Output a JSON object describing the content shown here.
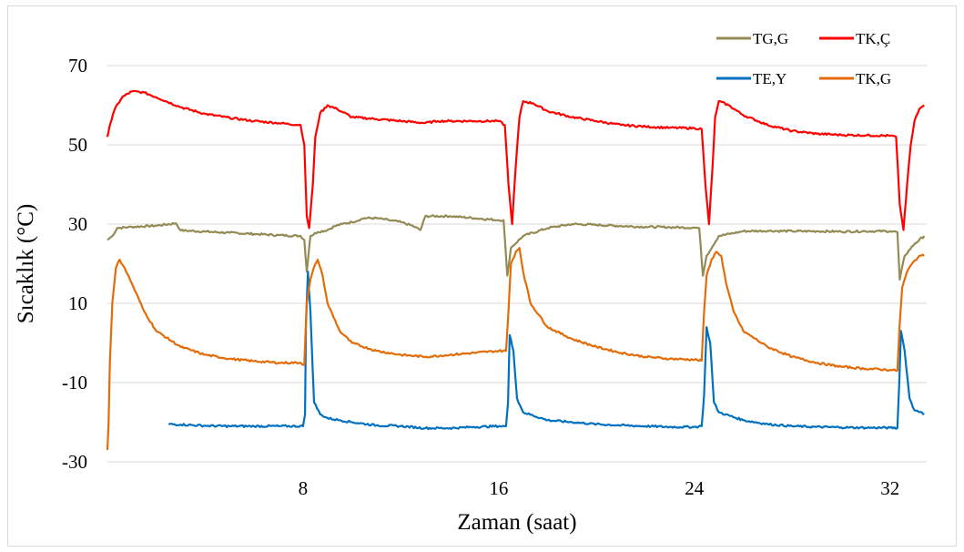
{
  "chart_data": {
    "type": "line",
    "xlabel": "Zaman (saat)",
    "ylabel": "Sıcaklık (°C)",
    "xlim": [
      0,
      33.5
    ],
    "ylim": [
      -30,
      70
    ],
    "xticks": [
      8,
      16,
      24,
      32
    ],
    "yticks": [
      -30,
      -10,
      10,
      30,
      50,
      70
    ],
    "grid": "horizontal",
    "legend": "top-right",
    "series": [
      {
        "name": "TG,G",
        "color": "#948a54",
        "points": [
          [
            0,
            26
          ],
          [
            0.2,
            27
          ],
          [
            0.4,
            29
          ],
          [
            1,
            29.3
          ],
          [
            2,
            29.6
          ],
          [
            2.8,
            30.2
          ],
          [
            3,
            28.4
          ],
          [
            4,
            28.1
          ],
          [
            5,
            27.8
          ],
          [
            6,
            27.5
          ],
          [
            7,
            27.2
          ],
          [
            7.9,
            27
          ],
          [
            8.05,
            26
          ],
          [
            8.15,
            18
          ],
          [
            8.3,
            27
          ],
          [
            8.6,
            28
          ],
          [
            9,
            28.5
          ],
          [
            9.3,
            29.5
          ],
          [
            9.6,
            30
          ],
          [
            10,
            30.5
          ],
          [
            10.5,
            31.5
          ],
          [
            11,
            31.5
          ],
          [
            11.5,
            31
          ],
          [
            12,
            30.5
          ],
          [
            12.5,
            29.5
          ],
          [
            12.8,
            28.5
          ],
          [
            13,
            32
          ],
          [
            14,
            32
          ],
          [
            15,
            31.5
          ],
          [
            16,
            31
          ],
          [
            16.2,
            31
          ],
          [
            16.35,
            17
          ],
          [
            16.5,
            24
          ],
          [
            17,
            27
          ],
          [
            18,
            29
          ],
          [
            19,
            30
          ],
          [
            20,
            29.8
          ],
          [
            21,
            29.5
          ],
          [
            22,
            29.3
          ],
          [
            23,
            29.2
          ],
          [
            24,
            29.1
          ],
          [
            24.2,
            29
          ],
          [
            24.35,
            17
          ],
          [
            24.5,
            22
          ],
          [
            25,
            27
          ],
          [
            26,
            28.2
          ],
          [
            27,
            28.3
          ],
          [
            28,
            28.2
          ],
          [
            29,
            28.2
          ],
          [
            30,
            28.1
          ],
          [
            31,
            28.2
          ],
          [
            32,
            28.2
          ],
          [
            32.3,
            28
          ],
          [
            32.4,
            16
          ],
          [
            32.6,
            22
          ],
          [
            33,
            25
          ],
          [
            33.4,
            27
          ]
        ]
      },
      {
        "name": "TK,Ç",
        "color": "#ff0000",
        "points": [
          [
            0,
            52
          ],
          [
            0.1,
            55
          ],
          [
            0.3,
            59
          ],
          [
            0.6,
            62
          ],
          [
            1,
            63.5
          ],
          [
            1.5,
            63.2
          ],
          [
            2,
            62
          ],
          [
            3,
            59.5
          ],
          [
            4,
            57.8
          ],
          [
            5,
            56.8
          ],
          [
            6,
            56
          ],
          [
            7,
            55.5
          ],
          [
            7.9,
            55
          ],
          [
            8.05,
            50
          ],
          [
            8.15,
            32
          ],
          [
            8.25,
            29
          ],
          [
            8.4,
            40
          ],
          [
            8.5,
            52
          ],
          [
            8.7,
            58
          ],
          [
            9,
            60
          ],
          [
            9.4,
            59
          ],
          [
            10,
            57
          ],
          [
            11,
            56.5
          ],
          [
            12,
            56
          ],
          [
            13,
            55.5
          ],
          [
            13.5,
            56
          ],
          [
            14,
            56
          ],
          [
            15,
            56
          ],
          [
            16,
            56
          ],
          [
            16.25,
            55
          ],
          [
            16.4,
            40
          ],
          [
            16.55,
            30
          ],
          [
            16.7,
            45
          ],
          [
            16.85,
            57
          ],
          [
            17,
            61
          ],
          [
            17.4,
            60.5
          ],
          [
            18,
            58.5
          ],
          [
            19,
            57
          ],
          [
            20,
            56
          ],
          [
            21,
            55
          ],
          [
            22,
            54.6
          ],
          [
            23,
            54.3
          ],
          [
            24,
            54.2
          ],
          [
            24.3,
            54
          ],
          [
            24.45,
            40
          ],
          [
            24.6,
            30
          ],
          [
            24.75,
            45
          ],
          [
            24.85,
            57
          ],
          [
            25,
            61
          ],
          [
            25.4,
            60
          ],
          [
            26,
            57.5
          ],
          [
            27,
            55
          ],
          [
            28,
            53.5
          ],
          [
            29,
            52.8
          ],
          [
            30,
            52.5
          ],
          [
            31,
            52.4
          ],
          [
            32,
            52.3
          ],
          [
            32.25,
            52
          ],
          [
            32.4,
            35
          ],
          [
            32.55,
            28.5
          ],
          [
            32.7,
            40
          ],
          [
            32.85,
            50
          ],
          [
            33,
            56
          ],
          [
            33.2,
            59
          ],
          [
            33.4,
            60
          ]
        ]
      },
      {
        "name": "TE,Y",
        "color": "#0070c0",
        "points": [
          [
            2.5,
            -20.5
          ],
          [
            3,
            -20.6
          ],
          [
            4,
            -20.9
          ],
          [
            5,
            -21
          ],
          [
            6,
            -21
          ],
          [
            7,
            -21
          ],
          [
            8,
            -21
          ],
          [
            8.08,
            -18
          ],
          [
            8.12,
            5
          ],
          [
            8.2,
            18
          ],
          [
            8.3,
            8
          ],
          [
            8.45,
            -15
          ],
          [
            8.7,
            -18
          ],
          [
            9,
            -19
          ],
          [
            9.5,
            -19.5
          ],
          [
            10,
            -20
          ],
          [
            11,
            -20.8
          ],
          [
            12,
            -21
          ],
          [
            13,
            -21.5
          ],
          [
            14,
            -21.5
          ],
          [
            15,
            -21.2
          ],
          [
            16,
            -21
          ],
          [
            16.3,
            -21
          ],
          [
            16.38,
            -15
          ],
          [
            16.45,
            2
          ],
          [
            16.6,
            -2
          ],
          [
            16.75,
            -14
          ],
          [
            17,
            -17.5
          ],
          [
            18,
            -19.5
          ],
          [
            19,
            -20
          ],
          [
            20,
            -20.5
          ],
          [
            21,
            -20.8
          ],
          [
            22,
            -21
          ],
          [
            23,
            -21.2
          ],
          [
            24,
            -21.2
          ],
          [
            24.3,
            -21
          ],
          [
            24.4,
            -13
          ],
          [
            24.5,
            4
          ],
          [
            24.65,
            0
          ],
          [
            24.8,
            -15
          ],
          [
            25,
            -17.5
          ],
          [
            26,
            -19.5
          ],
          [
            27,
            -20.5
          ],
          [
            28,
            -21
          ],
          [
            29,
            -21.2
          ],
          [
            30,
            -21.3
          ],
          [
            31,
            -21.4
          ],
          [
            32,
            -21.4
          ],
          [
            32.3,
            -21.5
          ],
          [
            32.38,
            -10
          ],
          [
            32.45,
            3
          ],
          [
            32.6,
            -2
          ],
          [
            32.8,
            -14
          ],
          [
            33,
            -17
          ],
          [
            33.3,
            -17.5
          ],
          [
            33.4,
            -18
          ]
        ]
      },
      {
        "name": "TK,G",
        "color": "#e36c09",
        "points": [
          [
            0,
            -27
          ],
          [
            0.05,
            -20
          ],
          [
            0.1,
            -5
          ],
          [
            0.2,
            10
          ],
          [
            0.35,
            19
          ],
          [
            0.5,
            21
          ],
          [
            0.7,
            19
          ],
          [
            1,
            15
          ],
          [
            1.5,
            8
          ],
          [
            2,
            3
          ],
          [
            3,
            -1
          ],
          [
            4,
            -3
          ],
          [
            5,
            -4
          ],
          [
            6,
            -4.6
          ],
          [
            7,
            -5
          ],
          [
            7.9,
            -5
          ],
          [
            8.05,
            -5.5
          ],
          [
            8.15,
            10
          ],
          [
            8.3,
            16
          ],
          [
            8.5,
            20
          ],
          [
            8.6,
            21
          ],
          [
            8.8,
            17
          ],
          [
            9,
            10
          ],
          [
            9.5,
            3
          ],
          [
            10,
            0
          ],
          [
            11,
            -2
          ],
          [
            12,
            -3
          ],
          [
            13,
            -3.5
          ],
          [
            14,
            -3
          ],
          [
            15,
            -2.5
          ],
          [
            16,
            -2
          ],
          [
            16.3,
            -2
          ],
          [
            16.4,
            8
          ],
          [
            16.5,
            20
          ],
          [
            16.7,
            23
          ],
          [
            16.85,
            24
          ],
          [
            17,
            18
          ],
          [
            17.3,
            10
          ],
          [
            18,
            4
          ],
          [
            19,
            1
          ],
          [
            20,
            -1
          ],
          [
            21,
            -2.5
          ],
          [
            22,
            -3.5
          ],
          [
            23,
            -4
          ],
          [
            24,
            -4.2
          ],
          [
            24.3,
            -4.5
          ],
          [
            24.4,
            8
          ],
          [
            24.5,
            17
          ],
          [
            24.7,
            21
          ],
          [
            24.9,
            23
          ],
          [
            25.1,
            22
          ],
          [
            25.3,
            15
          ],
          [
            25.6,
            8
          ],
          [
            26,
            3
          ],
          [
            27,
            -1
          ],
          [
            28,
            -3.5
          ],
          [
            29,
            -5
          ],
          [
            30,
            -6
          ],
          [
            31,
            -6.5
          ],
          [
            32,
            -6.8
          ],
          [
            32.3,
            -7
          ],
          [
            32.4,
            5
          ],
          [
            32.5,
            14
          ],
          [
            32.7,
            18
          ],
          [
            32.9,
            20
          ],
          [
            33.2,
            22
          ],
          [
            33.4,
            22
          ]
        ]
      }
    ]
  }
}
